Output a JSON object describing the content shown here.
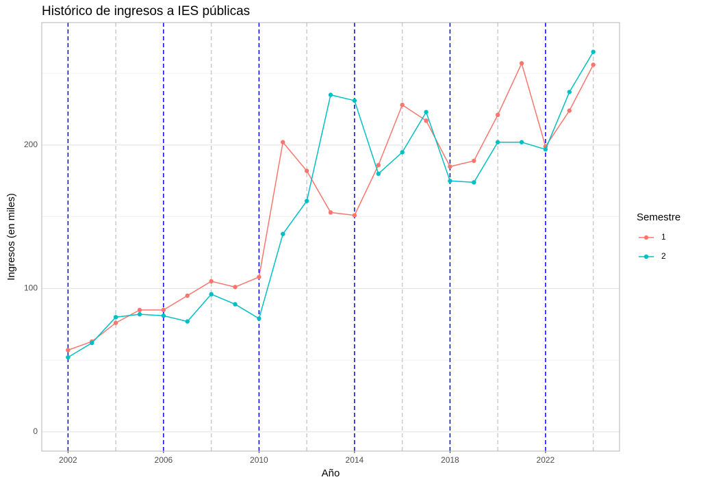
{
  "chart_data": {
    "type": "line",
    "title": "Histórico de ingresos a IES públicas",
    "x_label": "Año",
    "y_label": "Ingresos (en miles)",
    "legend_title": "Semestre",
    "legend_position": "right",
    "x": [
      2002,
      2003,
      2004,
      2005,
      2006,
      2007,
      2008,
      2009,
      2010,
      2011,
      2012,
      2013,
      2014,
      2015,
      2016,
      2017,
      2018,
      2019,
      2020,
      2021,
      2022,
      2023,
      2024
    ],
    "series": [
      {
        "name": "1",
        "color": "#F8766D",
        "values": [
          57,
          63,
          76,
          85,
          85,
          95,
          105,
          101,
          108,
          202,
          182,
          153,
          151,
          186,
          228,
          217,
          185,
          189,
          221,
          257,
          199,
          224,
          256
        ]
      },
      {
        "name": "2",
        "color": "#00BFC4",
        "values": [
          52,
          62,
          80,
          82,
          81,
          77,
          96,
          89,
          79,
          138,
          161,
          235,
          231,
          180,
          195,
          223,
          175,
          174,
          202,
          202,
          197,
          237,
          265
        ]
      }
    ],
    "xlim": [
      2000.9,
      2025.1
    ],
    "xticks": [
      2002,
      2006,
      2010,
      2014,
      2018,
      2022
    ],
    "ylim": [
      -13.4,
      285.4
    ],
    "yticks": [
      0,
      100,
      200
    ],
    "y_minor_grid": [
      50,
      150,
      250
    ],
    "reference_lines": [
      {
        "x": [
          2004,
          2008,
          2012,
          2016,
          2020,
          2024
        ],
        "color": "#cccccc"
      },
      {
        "x": [
          2002,
          2006,
          2010,
          2014,
          2018,
          2022
        ],
        "color": "#0000ff"
      }
    ],
    "grid": true
  }
}
